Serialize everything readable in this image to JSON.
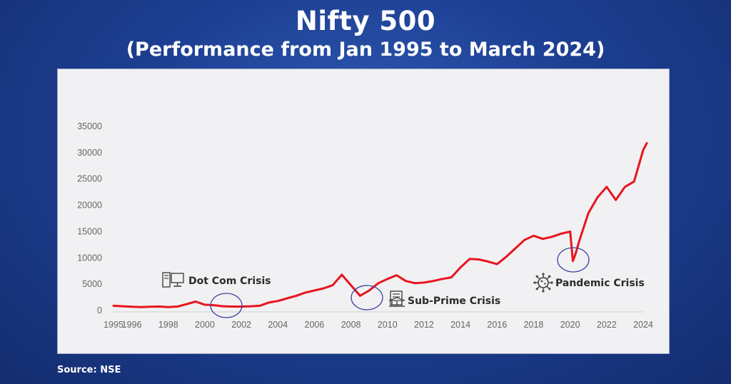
{
  "title": "Nifty 500",
  "subtitle": "(Performance from Jan 1995 to March 2024)",
  "source": "Source: NSE",
  "colors": {
    "line": "#e8141e",
    "circle": "#3a3f9e",
    "background": "#1d3f92",
    "panel": "#f1f0f2"
  },
  "chart_data": {
    "type": "line",
    "title": "Nifty 500",
    "subtitle": "(Performance from Jan 1995 to March 2024)",
    "xlabel": "",
    "ylabel": "",
    "xlim": [
      1995,
      2024
    ],
    "ylim": [
      0,
      35000
    ],
    "grid": false,
    "x_tick_labels": [
      "1995",
      "1996",
      "1998",
      "2000",
      "2002",
      "2004",
      "2006",
      "2008",
      "2010",
      "2012",
      "2014",
      "2016",
      "2018",
      "2020",
      "2022",
      "2024"
    ],
    "y_tick_labels": [
      "0",
      "5000",
      "10000",
      "15000",
      "20000",
      "25000",
      "30000",
      "35000"
    ],
    "series": [
      {
        "x": [
          1995.0,
          1995.5,
          1996.0,
          1996.5,
          1997.0,
          1997.5,
          1998.0,
          1998.5,
          1999.0,
          1999.5,
          2000.0,
          2000.5,
          2001.0,
          2001.5,
          2002.0,
          2002.5,
          2003.0,
          2003.5,
          2004.0,
          2004.5,
          2005.0,
          2005.5,
          2006.0,
          2006.5,
          2007.0,
          2007.5,
          2008.0,
          2008.5,
          2009.0,
          2009.5,
          2010.0,
          2010.5,
          2011.0,
          2011.5,
          2012.0,
          2012.5,
          2013.0,
          2013.5,
          2014.0,
          2014.5,
          2015.0,
          2015.5,
          2016.0,
          2016.5,
          2017.0,
          2017.5,
          2018.0,
          2018.5,
          2019.0,
          2019.5,
          2020.0,
          2020.15,
          2020.3,
          2020.5,
          2021.0,
          2021.5,
          2022.0,
          2022.5,
          2023.0,
          2023.5,
          2024.0,
          2024.2
        ],
        "y": [
          900,
          800,
          700,
          650,
          700,
          750,
          650,
          750,
          1200,
          1700,
          1100,
          1000,
          800,
          750,
          750,
          800,
          900,
          1500,
          1800,
          2300,
          2800,
          3400,
          3800,
          4200,
          4800,
          6800,
          4800,
          2800,
          3800,
          5200,
          6000,
          6700,
          5600,
          5200,
          5300,
          5600,
          6000,
          6300,
          8200,
          9800,
          9700,
          9300,
          8800,
          10200,
          11800,
          13400,
          14200,
          13600,
          14000,
          14600,
          15000,
          9400,
          10800,
          13200,
          18500,
          21500,
          23500,
          21000,
          23500,
          24500,
          30500,
          31800
        ]
      }
    ],
    "annotations": [
      {
        "label": "Dot Com Crisis",
        "x": 2000.5,
        "y": 1000,
        "icon": "computer-icon"
      },
      {
        "label": "Sub-Prime Crisis",
        "x": 2008.3,
        "y": 3500,
        "icon": "bank-icon"
      },
      {
        "label": "Pandemic Crisis",
        "x": 2020.2,
        "y": 10000,
        "icon": "virus-icon"
      }
    ]
  }
}
